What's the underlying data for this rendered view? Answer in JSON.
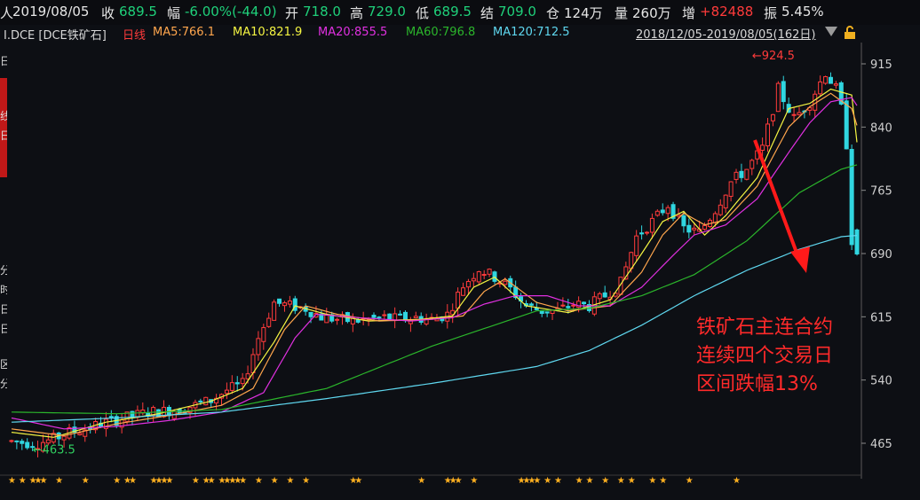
{
  "header": {
    "date": "2019/08/05",
    "close_label": "收",
    "close_value": "689.5",
    "change_label": "幅",
    "change_value": "-6.00%(-44.0)",
    "open_label": "开",
    "open_value": "718.0",
    "high_label": "高",
    "high_value": "729.0",
    "low_label": "低",
    "low_value": "689.5",
    "settle_label": "结",
    "settle_value": "709.0",
    "oi_label": "仓",
    "oi_value": "124万",
    "vol_label": "量",
    "vol_value": "260万",
    "inc_label": "增",
    "inc_value": "+82488",
    "amp_label": "振",
    "amp_value": "5.45%",
    "left_fragment": "人"
  },
  "ma_bar": {
    "symbol": "I.DCE [DCE铁矿石]",
    "period": "日线",
    "ma5": "MA5:766.1",
    "ma10": "MA10:821.9",
    "ma20": "MA20:855.5",
    "ma60": "MA60:796.8",
    "ma120": "MA120:712.5",
    "range": "2018/12/05-2019/08/05(162日)"
  },
  "left_strip": [
    "日",
    "线",
    "日",
    "分",
    "时",
    "日",
    "日",
    "区",
    "分"
  ],
  "annotation": [
    "铁矿石主连合约",
    "连续四个交易日",
    "区间跌幅13%"
  ],
  "colors": {
    "up": "#ff3b3b",
    "down": "#30d6e0",
    "ma5": "#f5f542",
    "ma10": "#ffa64d",
    "ma20": "#e030e0",
    "ma60": "#2bb52b",
    "ma120": "#5fd8f0",
    "marker": "#ffb020",
    "annotation": "#ff2a2a"
  },
  "chart_data": {
    "type": "candlestick",
    "y_ticks": [
      915,
      840,
      765,
      690,
      615,
      540,
      465
    ],
    "ylim": [
      441,
      961
    ],
    "n_bars": 162,
    "price_labels": {
      "high": "924.5",
      "low": "463.5"
    },
    "anchors": [
      [
        0,
        468
      ],
      [
        3,
        466
      ],
      [
        6,
        465
      ],
      [
        9,
        470
      ],
      [
        12,
        478
      ],
      [
        15,
        482
      ],
      [
        18,
        488
      ],
      [
        21,
        493
      ],
      [
        24,
        497
      ],
      [
        27,
        502
      ],
      [
        30,
        503
      ],
      [
        33,
        506
      ],
      [
        36,
        510
      ],
      [
        39,
        516
      ],
      [
        42,
        528
      ],
      [
        45,
        535
      ],
      [
        48,
        590
      ],
      [
        51,
        632
      ],
      [
        54,
        628
      ],
      [
        57,
        625
      ],
      [
        60,
        615
      ],
      [
        63,
        612
      ],
      [
        66,
        610
      ],
      [
        69,
        612
      ],
      [
        72,
        614
      ],
      [
        75,
        612
      ],
      [
        78,
        614
      ],
      [
        81,
        612
      ],
      [
        84,
        618
      ],
      [
        87,
        652
      ],
      [
        90,
        672
      ],
      [
        93,
        662
      ],
      [
        96,
        648
      ],
      [
        99,
        628
      ],
      [
        102,
        622
      ],
      [
        105,
        622
      ],
      [
        108,
        630
      ],
      [
        111,
        628
      ],
      [
        114,
        640
      ],
      [
        117,
        655
      ],
      [
        120,
        710
      ],
      [
        123,
        728
      ],
      [
        126,
        748
      ],
      [
        129,
        720
      ],
      [
        132,
        715
      ],
      [
        135,
        742
      ],
      [
        138,
        775
      ],
      [
        141,
        790
      ],
      [
        144,
        815
      ],
      [
        147,
        885
      ],
      [
        150,
        850
      ],
      [
        153,
        870
      ],
      [
        156,
        905
      ],
      [
        158,
        885
      ],
      [
        159,
        862
      ],
      [
        160,
        820
      ],
      [
        161,
        706
      ],
      [
        162,
        690
      ]
    ],
    "ma": {
      "ma5": [
        [
          0,
          478
        ],
        [
          8,
          472
        ],
        [
          18,
          490
        ],
        [
          28,
          500
        ],
        [
          38,
          515
        ],
        [
          44,
          530
        ],
        [
          50,
          585
        ],
        [
          54,
          628
        ],
        [
          60,
          618
        ],
        [
          68,
          610
        ],
        [
          78,
          612
        ],
        [
          84,
          616
        ],
        [
          88,
          650
        ],
        [
          92,
          662
        ],
        [
          98,
          628
        ],
        [
          106,
          620
        ],
        [
          114,
          635
        ],
        [
          120,
          690
        ],
        [
          124,
          728
        ],
        [
          128,
          740
        ],
        [
          132,
          712
        ],
        [
          136,
          735
        ],
        [
          142,
          780
        ],
        [
          148,
          862
        ],
        [
          152,
          868
        ],
        [
          156,
          885
        ],
        [
          160,
          878
        ],
        [
          162,
          766
        ]
      ],
      "ma10": [
        [
          0,
          482
        ],
        [
          10,
          474
        ],
        [
          20,
          488
        ],
        [
          30,
          498
        ],
        [
          40,
          510
        ],
        [
          46,
          530
        ],
        [
          52,
          600
        ],
        [
          56,
          628
        ],
        [
          62,
          618
        ],
        [
          70,
          610
        ],
        [
          80,
          612
        ],
        [
          86,
          616
        ],
        [
          90,
          645
        ],
        [
          94,
          660
        ],
        [
          100,
          632
        ],
        [
          106,
          622
        ],
        [
          114,
          628
        ],
        [
          120,
          668
        ],
        [
          124,
          712
        ],
        [
          128,
          738
        ],
        [
          132,
          724
        ],
        [
          136,
          730
        ],
        [
          142,
          770
        ],
        [
          148,
          840
        ],
        [
          152,
          864
        ],
        [
          156,
          880
        ],
        [
          160,
          862
        ],
        [
          162,
          822
        ]
      ],
      "ma20": [
        [
          0,
          495
        ],
        [
          10,
          482
        ],
        [
          20,
          485
        ],
        [
          30,
          492
        ],
        [
          40,
          502
        ],
        [
          48,
          525
        ],
        [
          54,
          590
        ],
        [
          58,
          618
        ],
        [
          66,
          614
        ],
        [
          76,
          610
        ],
        [
          84,
          614
        ],
        [
          90,
          630
        ],
        [
          96,
          640
        ],
        [
          102,
          640
        ],
        [
          108,
          628
        ],
        [
          114,
          628
        ],
        [
          120,
          650
        ],
        [
          126,
          688
        ],
        [
          130,
          712
        ],
        [
          136,
          724
        ],
        [
          142,
          755
        ],
        [
          148,
          810
        ],
        [
          152,
          845
        ],
        [
          156,
          870
        ],
        [
          160,
          875
        ],
        [
          162,
          856
        ]
      ],
      "ma60": [
        [
          0,
          502
        ],
        [
          20,
          500
        ],
        [
          40,
          505
        ],
        [
          60,
          530
        ],
        [
          80,
          580
        ],
        [
          100,
          622
        ],
        [
          110,
          625
        ],
        [
          120,
          640
        ],
        [
          130,
          665
        ],
        [
          140,
          705
        ],
        [
          150,
          762
        ],
        [
          158,
          790
        ],
        [
          162,
          797
        ]
      ],
      "ma120": [
        [
          0,
          490
        ],
        [
          20,
          495
        ],
        [
          40,
          502
        ],
        [
          60,
          518
        ],
        [
          80,
          536
        ],
        [
          100,
          556
        ],
        [
          110,
          575
        ],
        [
          120,
          605
        ],
        [
          130,
          640
        ],
        [
          140,
          670
        ],
        [
          150,
          695
        ],
        [
          158,
          710
        ],
        [
          162,
          712
        ]
      ]
    }
  }
}
